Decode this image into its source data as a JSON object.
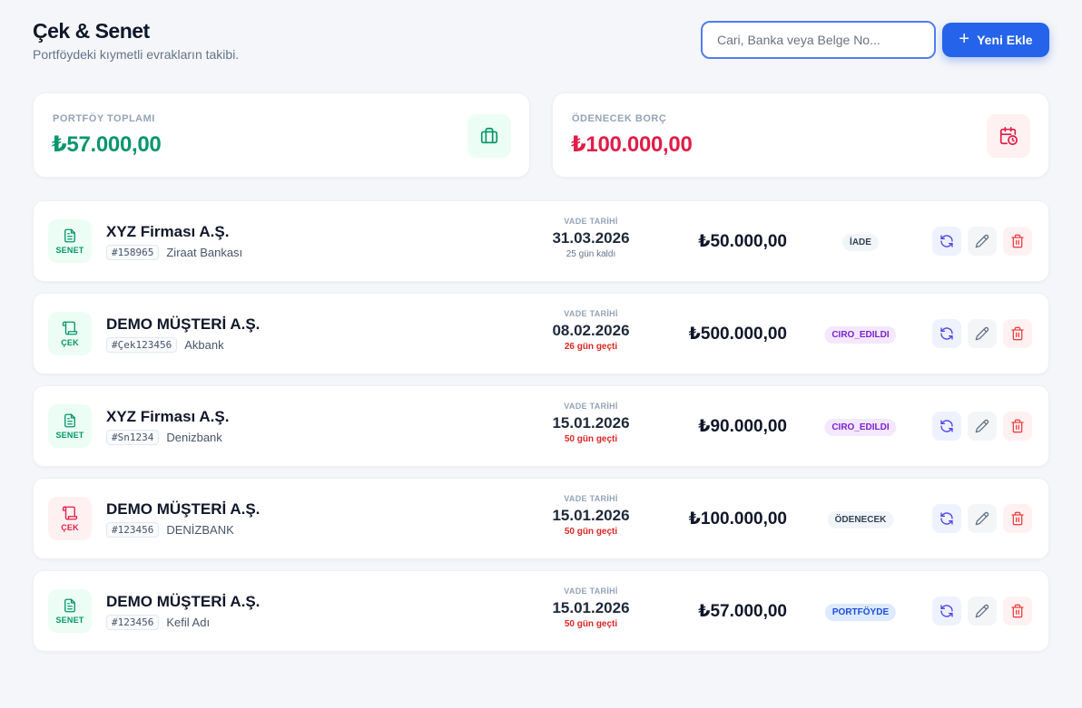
{
  "page": {
    "title": "Çek & Senet",
    "subtitle": "Portföydeki kıymetli evrakların takibi."
  },
  "search": {
    "placeholder": "Cari, Banka veya Belge No...",
    "value": ""
  },
  "add_button": {
    "label": "Yeni Ekle"
  },
  "stats": [
    {
      "label": "PORTFÖY TOPLAMI",
      "value": "₺57.000,00",
      "color": "#059669",
      "icon": "briefcase-icon"
    },
    {
      "label": "ÖDENECEK BORÇ",
      "value": "₺100.000,00",
      "color": "#e11d48",
      "icon": "calendar-clock-icon"
    }
  ],
  "due_label": "VADE TARİHİ",
  "records": [
    {
      "type": "SENET",
      "party": "XYZ Firması A.Ş.",
      "doc_no": "#158965",
      "bank": "Ziraat Bankası",
      "due_date": "31.03.2026",
      "due_note": "25 gün kaldı",
      "amount": "₺50.000,00",
      "status": "İADE"
    },
    {
      "type": "ÇEK",
      "party": "DEMO MÜŞTERİ A.Ş.",
      "doc_no": "#Çek123456",
      "bank": "Akbank",
      "due_date": "08.02.2026",
      "due_note": "26 gün geçti",
      "amount": "₺500.000,00",
      "status": "CIRO_EDILDI"
    },
    {
      "type": "SENET",
      "party": "XYZ Firması A.Ş.",
      "doc_no": "#Sn1234",
      "bank": "Denizbank",
      "due_date": "15.01.2026",
      "due_note": "50 gün geçti",
      "amount": "₺90.000,00",
      "status": "CIRO_EDILDI"
    },
    {
      "type": "ÇEK",
      "party": "DEMO MÜŞTERİ A.Ş.",
      "doc_no": "#123456",
      "bank": "DENİZBANK",
      "due_date": "15.01.2026",
      "due_note": "50 gün geçti",
      "amount": "₺100.000,00",
      "status": "ÖDENECEK"
    },
    {
      "type": "SENET",
      "party": "DEMO MÜŞTERİ A.Ş.",
      "doc_no": "#123456",
      "bank": "Kefil Adı",
      "due_date": "15.01.2026",
      "due_note": "50 gün geçti",
      "amount": "₺57.000,00",
      "status": "PORTFÖYDE"
    }
  ]
}
